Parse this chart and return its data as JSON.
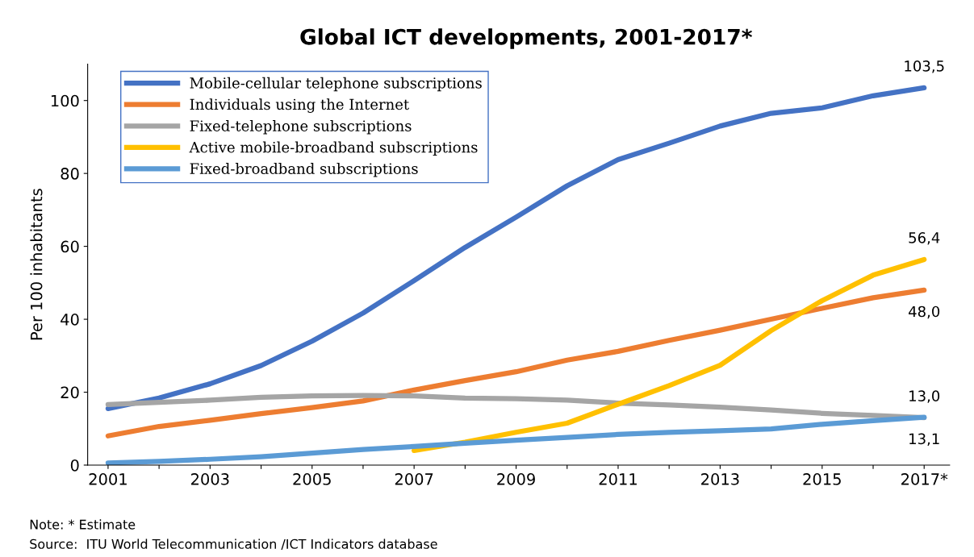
{
  "chart_data": {
    "type": "line",
    "title": "Global ICT developments, 2001-2017*",
    "ylabel": "Per 100 inhabitants",
    "categories": [
      "2001",
      null,
      "2003",
      null,
      "2005",
      null,
      "2007",
      null,
      "2009",
      null,
      "2011",
      null,
      "2013",
      null,
      "2015",
      null,
      "2017*"
    ],
    "series": [
      {
        "name": "Mobile-cellular telephone subscriptions",
        "color": "#4472c4",
        "values": [
          15.5,
          18.4,
          22.3,
          27.3,
          34.0,
          41.7,
          50.6,
          59.7,
          68.0,
          76.6,
          83.8,
          88.3,
          93.0,
          96.5,
          98.0,
          101.3,
          103.5
        ],
        "value_labels": [
          null,
          null,
          null,
          null,
          null,
          null,
          null,
          null,
          null,
          null,
          null,
          null,
          null,
          null,
          null,
          null,
          "103,5"
        ]
      },
      {
        "name": "Individuals using the Internet",
        "color": "#ed7d31",
        "values": [
          8.0,
          10.6,
          12.3,
          14.1,
          15.8,
          17.6,
          20.6,
          23.2,
          25.6,
          28.8,
          31.2,
          34.2,
          37.0,
          40.0,
          43.0,
          45.9,
          48.0
        ],
        "value_labels": [
          null,
          null,
          null,
          null,
          null,
          null,
          null,
          null,
          null,
          null,
          null,
          null,
          null,
          null,
          null,
          null,
          "48,0"
        ]
      },
      {
        "name": "Fixed-telephone subscriptions",
        "color": "#a5a5a5",
        "values": [
          16.6,
          17.2,
          17.8,
          18.6,
          19.0,
          19.1,
          19.0,
          18.4,
          18.2,
          17.8,
          17.0,
          16.5,
          15.9,
          15.1,
          14.2,
          13.6,
          13.0
        ],
        "value_labels": [
          null,
          null,
          null,
          null,
          null,
          null,
          null,
          null,
          null,
          null,
          null,
          null,
          null,
          null,
          null,
          null,
          "13,0"
        ]
      },
      {
        "name": "Active mobile-broadband subscriptions",
        "color": "#ffc000",
        "values": [
          null,
          null,
          null,
          null,
          null,
          null,
          4.0,
          6.3,
          9.0,
          11.5,
          16.7,
          21.8,
          27.4,
          36.9,
          45.1,
          52.1,
          56.4
        ],
        "value_labels": [
          null,
          null,
          null,
          null,
          null,
          null,
          null,
          null,
          null,
          null,
          null,
          null,
          null,
          null,
          null,
          null,
          "56,4"
        ]
      },
      {
        "name": "Fixed-broadband subscriptions",
        "color": "#5b9bd5",
        "values": [
          0.6,
          1.0,
          1.6,
          2.3,
          3.3,
          4.3,
          5.1,
          6.0,
          6.8,
          7.6,
          8.4,
          9.0,
          9.4,
          9.9,
          11.2,
          12.2,
          13.1
        ],
        "value_labels": [
          null,
          null,
          null,
          null,
          null,
          null,
          null,
          null,
          null,
          null,
          null,
          null,
          null,
          null,
          null,
          null,
          "13,1"
        ]
      }
    ],
    "ylim": [
      0,
      110
    ],
    "yticks": [
      0,
      20,
      40,
      60,
      80,
      100
    ],
    "grid": false,
    "legend": "top left",
    "marker": "none",
    "line_style": "solid",
    "annotations": [
      "Note: * Estimate",
      "Source:  ITU World Telecommunication /ICT Indicators database"
    ]
  }
}
